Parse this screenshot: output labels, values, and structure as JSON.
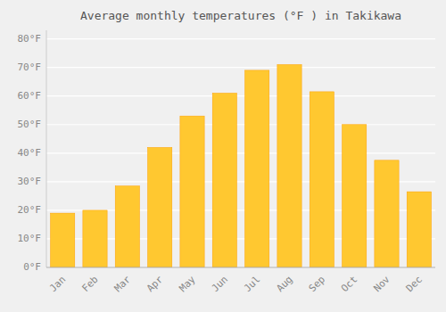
{
  "chart_data": {
    "type": "bar",
    "title": "Average monthly temperatures (°F ) in Takikawa",
    "categories": [
      "Jan",
      "Feb",
      "Mar",
      "Apr",
      "May",
      "Jun",
      "Jul",
      "Aug",
      "Sep",
      "Oct",
      "Nov",
      "Dec"
    ],
    "values": [
      19,
      20,
      28.5,
      42,
      53,
      61,
      69,
      71,
      61.5,
      50,
      37.5,
      26.5
    ],
    "color": "#FFC830",
    "ylim": [
      0,
      83
    ],
    "yticks": [
      {
        "value": 0,
        "label": "0°F"
      },
      {
        "value": 10,
        "label": "10°F"
      },
      {
        "value": 20,
        "label": "20°F"
      },
      {
        "value": 30,
        "label": "30°F"
      },
      {
        "value": 40,
        "label": "40°F"
      },
      {
        "value": 50,
        "label": "50°F"
      },
      {
        "value": 60,
        "label": "60°F"
      },
      {
        "value": 70,
        "label": "70°F"
      },
      {
        "value": 80,
        "label": "80°F"
      }
    ],
    "grid": true
  }
}
